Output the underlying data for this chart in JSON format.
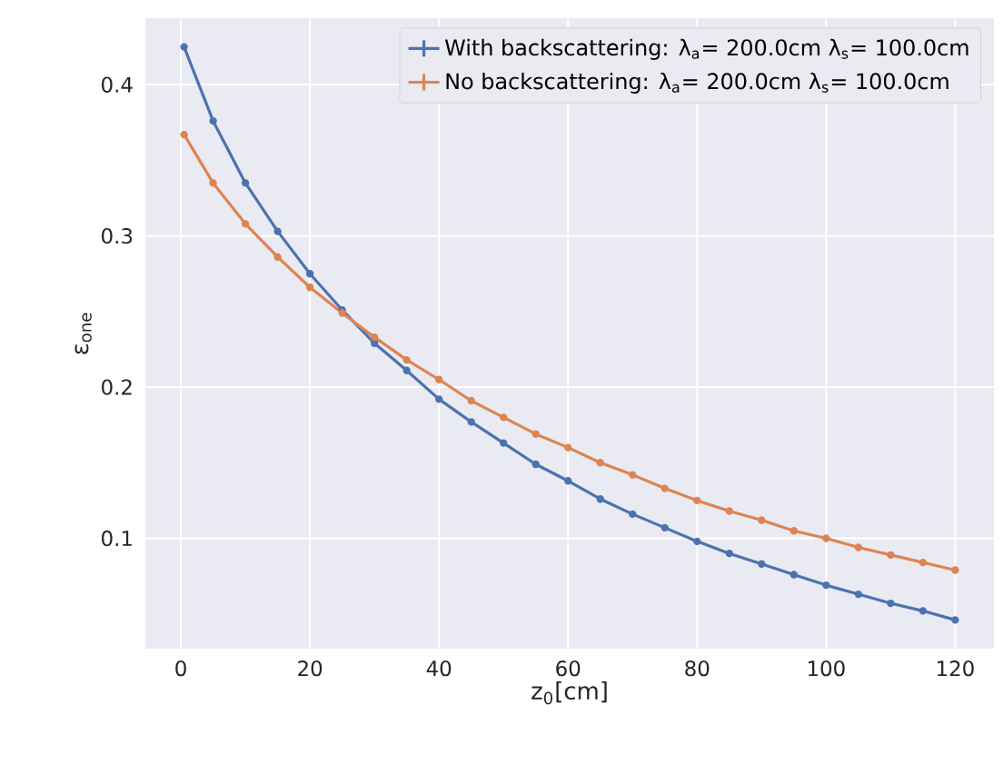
{
  "chart_data": {
    "type": "line",
    "xlabel": "z$_{0}$[cm]",
    "ylabel": "ε$_{one}$",
    "x": [
      0.5,
      5,
      10,
      15,
      20,
      25,
      30,
      35,
      40,
      45,
      50,
      55,
      60,
      65,
      70,
      75,
      80,
      85,
      90,
      95,
      100,
      105,
      110,
      115,
      120
    ],
    "series": [
      {
        "name": "With backscattering: λ$_{a}$=  200.0cm λ$_{s}$=  100.0cm",
        "color": "#4c72b0",
        "values": [
          0.425,
          0.376,
          0.335,
          0.303,
          0.275,
          0.251,
          0.229,
          0.211,
          0.192,
          0.177,
          0.163,
          0.149,
          0.138,
          0.126,
          0.116,
          0.107,
          0.098,
          0.09,
          0.083,
          0.076,
          0.069,
          0.063,
          0.057,
          0.052,
          0.046
        ]
      },
      {
        "name": "No backscattering: λ$_{a}$=  200.0cm λ$_{s}$=  100.0cm",
        "color": "#dd8452",
        "values": [
          0.367,
          0.335,
          0.308,
          0.286,
          0.266,
          0.249,
          0.233,
          0.218,
          0.205,
          0.191,
          0.18,
          0.169,
          0.16,
          0.15,
          0.142,
          0.133,
          0.125,
          0.118,
          0.112,
          0.105,
          0.1,
          0.094,
          0.089,
          0.084,
          0.079
        ]
      }
    ],
    "xlim": [
      -5.5,
      126
    ],
    "ylim": [
      0.027,
      0.444
    ],
    "xticks": [
      0,
      20,
      40,
      60,
      80,
      100,
      120
    ],
    "yticks": [
      0.1,
      0.2,
      0.3,
      0.4
    ],
    "grid": true,
    "legend": "top right",
    "marker": "circle",
    "line_style": "solid"
  }
}
